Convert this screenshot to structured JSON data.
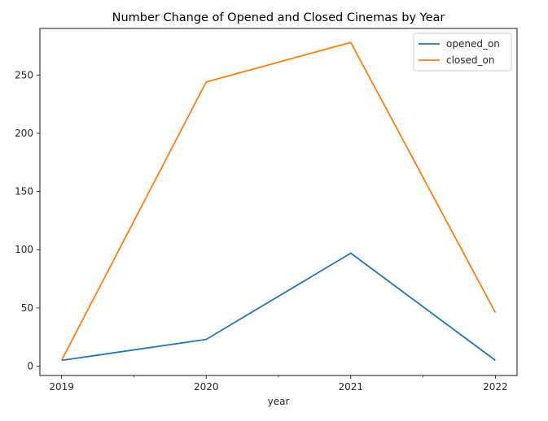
{
  "chart_data": {
    "type": "line",
    "title": "Number Change of Opened and Closed Cinemas by Year",
    "xlabel": "year",
    "ylabel": "",
    "categories": [
      "2019",
      "2020",
      "2021",
      "2022"
    ],
    "x": [
      2019,
      2020,
      2021,
      2022
    ],
    "xlim": [
      2018.85,
      2022.15
    ],
    "ylim": [
      -8,
      290
    ],
    "yticks": [
      0,
      50,
      100,
      150,
      200,
      250
    ],
    "x_minor_ticks": [
      2019.5,
      2020.5,
      2021.5
    ],
    "grid": false,
    "legend_position": "top-right",
    "series": [
      {
        "name": "opened_on",
        "color": "#1f77b4",
        "values": [
          5,
          23,
          97,
          5
        ]
      },
      {
        "name": "closed_on",
        "color": "#ff7f0e",
        "values": [
          5,
          244,
          278,
          46
        ]
      }
    ]
  }
}
